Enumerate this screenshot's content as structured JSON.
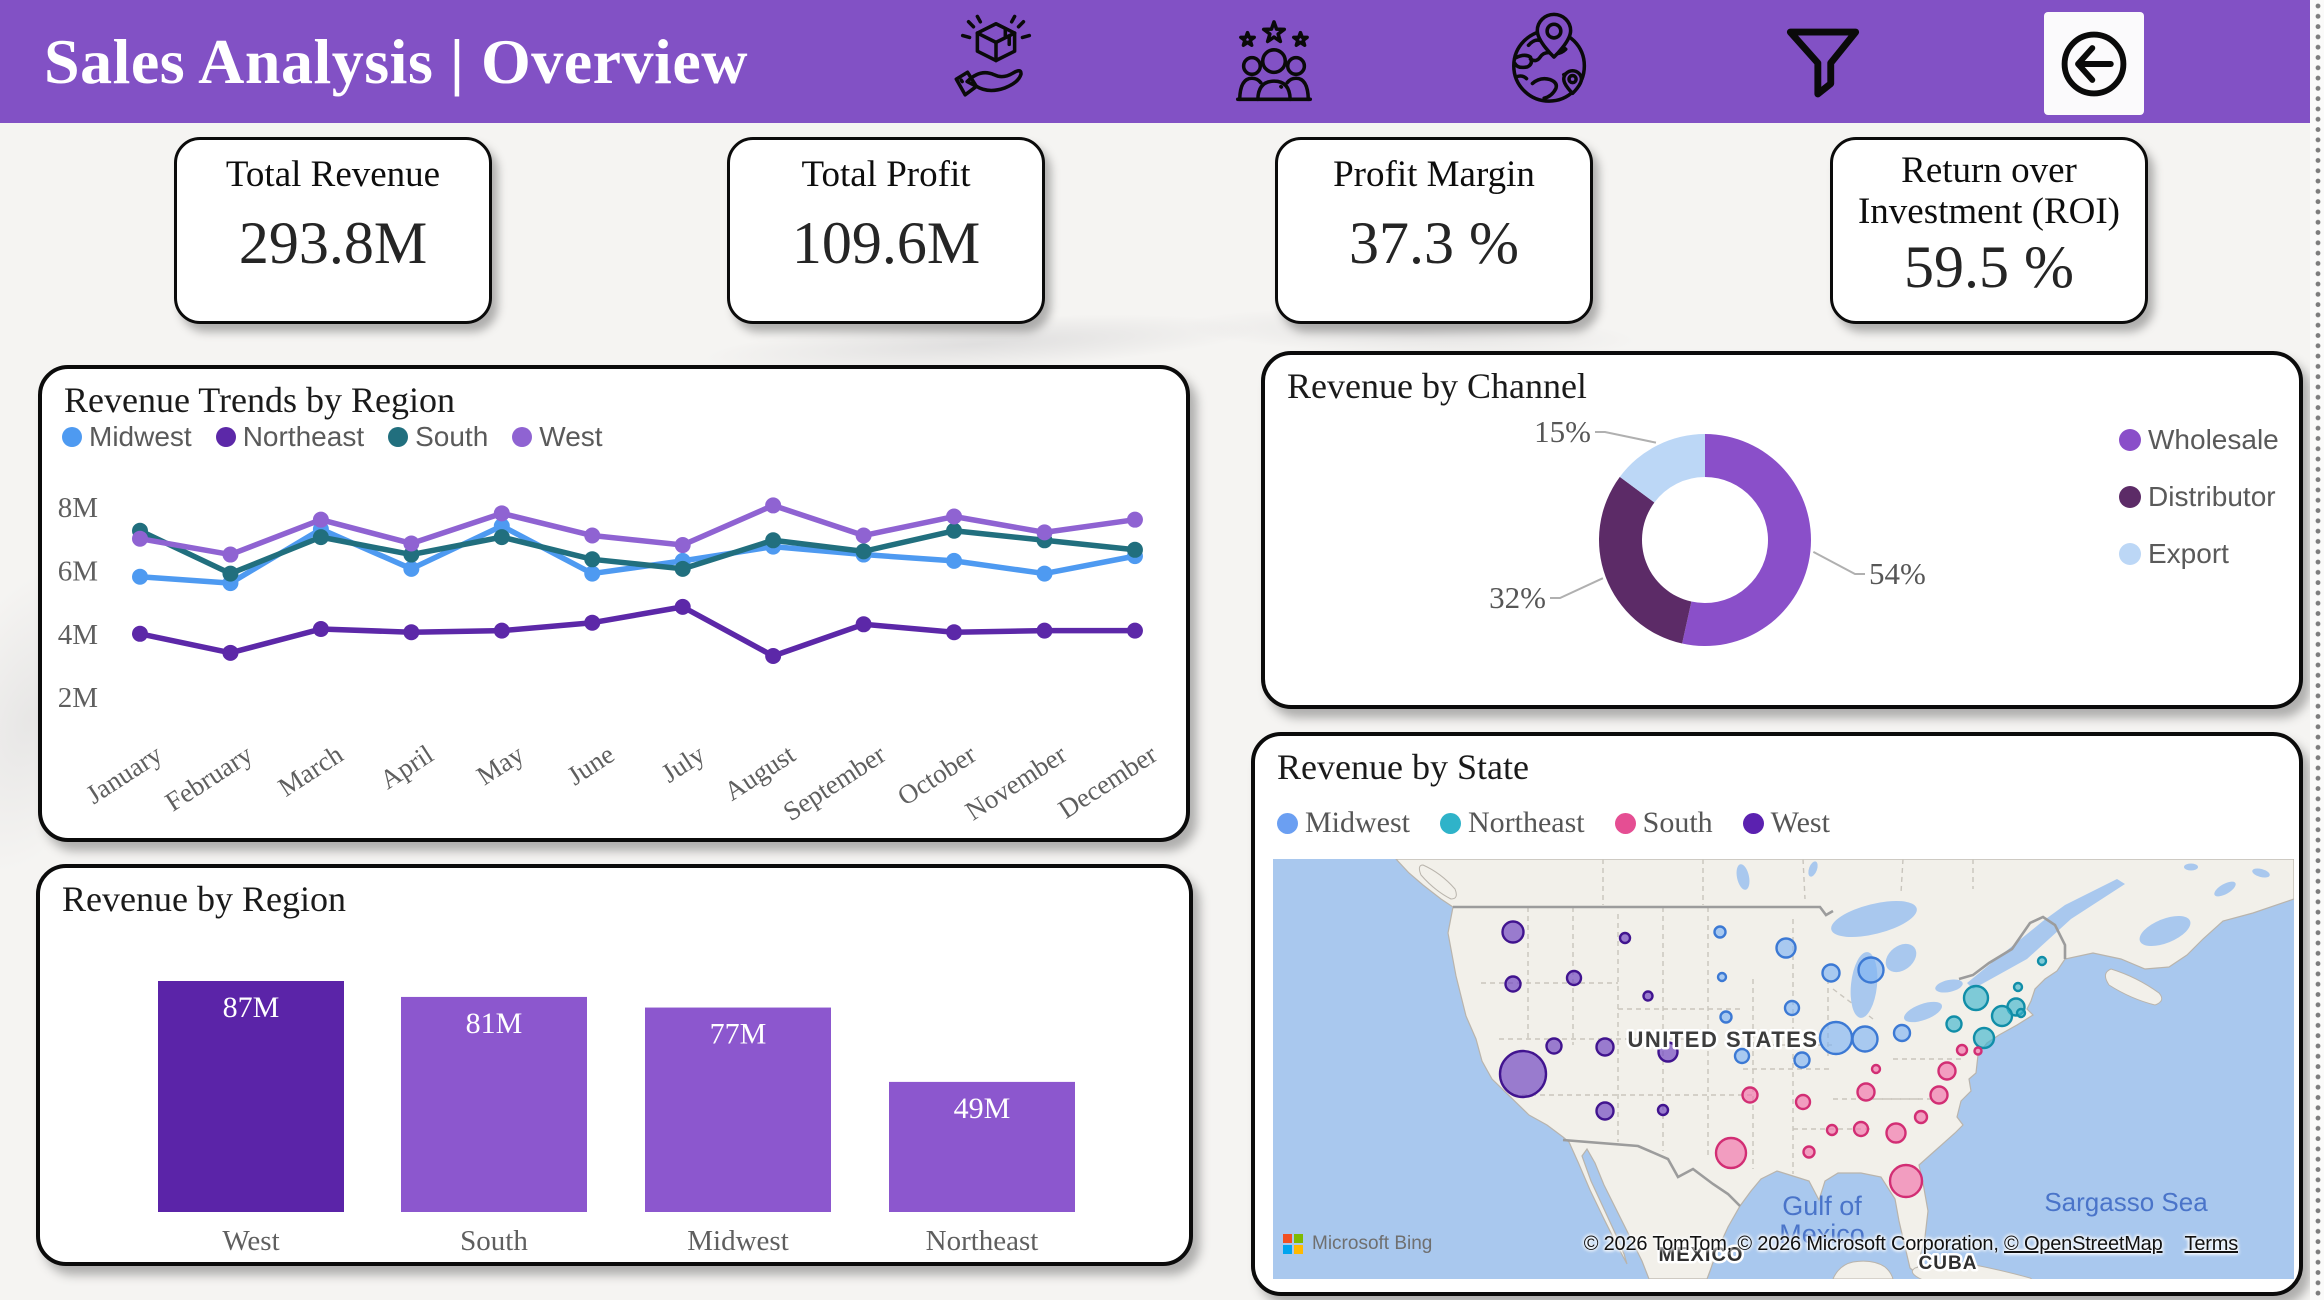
{
  "app": {
    "background": "#F5F4F2",
    "accent": "#8251C5"
  },
  "header": {
    "title": "Sales Analysis | Overview",
    "background": "#8251C5",
    "icons": [
      {
        "name": "product-handoff-icon"
      },
      {
        "name": "customer-rating-icon"
      },
      {
        "name": "global-locations-icon"
      },
      {
        "name": "filter-icon"
      },
      {
        "name": "back-arrow-icon"
      }
    ]
  },
  "kpis": [
    {
      "label": "Total Revenue",
      "value": "293.8M"
    },
    {
      "label": "Total Profit",
      "value": "109.6M"
    },
    {
      "label": "Profit Margin",
      "value": "37.3 %"
    },
    {
      "label": "Return over Investment (ROI)",
      "value": "59.5 %"
    }
  ],
  "chart_data": [
    {
      "type": "line",
      "title": "Revenue Trends by Region",
      "xlabel": "",
      "ylabel": "",
      "ylim": [
        2000000,
        8000000
      ],
      "y_tick_labels": [
        "2M",
        "4M",
        "6M",
        "8M"
      ],
      "categories": [
        "January",
        "February",
        "March",
        "April",
        "May",
        "June",
        "July",
        "August",
        "September",
        "October",
        "November",
        "December"
      ],
      "legend_position": "top-left",
      "grid": false,
      "unit": "millions",
      "series": [
        {
          "name": "Midwest",
          "color": "#4E9AF1",
          "values": [
            5.8,
            5.6,
            7.3,
            6.05,
            7.4,
            5.9,
            6.3,
            6.75,
            6.5,
            6.3,
            5.9,
            6.45
          ]
        },
        {
          "name": "Northeast",
          "color": "#5C28A8",
          "values": [
            4.0,
            3.4,
            4.15,
            4.05,
            4.1,
            4.35,
            4.85,
            3.3,
            4.3,
            4.05,
            4.1,
            4.1
          ]
        },
        {
          "name": "South",
          "color": "#216F7E",
          "values": [
            7.25,
            5.9,
            7.05,
            6.5,
            7.05,
            6.35,
            6.05,
            6.95,
            6.6,
            7.25,
            6.95,
            6.65
          ]
        },
        {
          "name": "West",
          "color": "#8F63D2",
          "values": [
            7.0,
            6.5,
            7.6,
            6.85,
            7.8,
            7.1,
            6.8,
            8.05,
            7.1,
            7.7,
            7.2,
            7.6
          ]
        }
      ]
    },
    {
      "type": "pie",
      "subtype": "donut",
      "title": "Revenue by Channel",
      "legend_position": "right",
      "slices": [
        {
          "name": "Wholesale",
          "pct_label": "54%",
          "value": 54,
          "color": "#8A4FC9"
        },
        {
          "name": "Distributor",
          "pct_label": "32%",
          "value": 32,
          "color": "#5C2B67"
        },
        {
          "name": "Export",
          "pct_label": "15%",
          "value": 15,
          "color": "#BCD7F6"
        }
      ]
    },
    {
      "type": "bar",
      "title": "Revenue by Region",
      "xlabel": "",
      "ylabel": "",
      "grid": false,
      "categories": [
        "West",
        "South",
        "Midwest",
        "Northeast"
      ],
      "values": [
        87,
        81,
        77,
        49
      ],
      "value_labels": [
        "87M",
        "81M",
        "77M",
        "49M"
      ],
      "bar_colors": [
        "#5B24A8",
        "#8C57CE",
        "#8C57CE",
        "#8C57CE"
      ],
      "unit": "millions"
    },
    {
      "type": "scatter",
      "subtype": "map-bubbles",
      "title": "Revenue by State",
      "legend_position": "top-left",
      "note": "bubble positions/radii read from map pixels (px inside 1021x420 map area)",
      "legend": [
        {
          "name": "Midwest",
          "color": "#6B9FF2"
        },
        {
          "name": "Northeast",
          "color": "#2FB3C9"
        },
        {
          "name": "South",
          "color": "#E54E93"
        },
        {
          "name": "West",
          "color": "#5B21B0"
        }
      ],
      "bubbles": [
        {
          "region": "West",
          "x": 240,
          "y": 73,
          "r": 10.5
        },
        {
          "region": "West",
          "x": 352,
          "y": 79,
          "r": 5
        },
        {
          "region": "West",
          "x": 240,
          "y": 125,
          "r": 7.5
        },
        {
          "region": "West",
          "x": 301,
          "y": 119,
          "r": 7
        },
        {
          "region": "West",
          "x": 375,
          "y": 137,
          "r": 4.5
        },
        {
          "region": "West",
          "x": 281,
          "y": 187,
          "r": 7.5
        },
        {
          "region": "West",
          "x": 332,
          "y": 188,
          "r": 8.5
        },
        {
          "region": "West",
          "x": 395,
          "y": 193,
          "r": 9.5
        },
        {
          "region": "West",
          "x": 250,
          "y": 215,
          "r": 23
        },
        {
          "region": "West",
          "x": 332,
          "y": 252,
          "r": 8.5
        },
        {
          "region": "West",
          "x": 390,
          "y": 251,
          "r": 5
        },
        {
          "region": "Midwest",
          "x": 447,
          "y": 73,
          "r": 5.5
        },
        {
          "region": "Midwest",
          "x": 513,
          "y": 89,
          "r": 9.5
        },
        {
          "region": "Midwest",
          "x": 449,
          "y": 118,
          "r": 4
        },
        {
          "region": "Midwest",
          "x": 558,
          "y": 114,
          "r": 8.5
        },
        {
          "region": "Midwest",
          "x": 598,
          "y": 111,
          "r": 12.5
        },
        {
          "region": "Midwest",
          "x": 519,
          "y": 149,
          "r": 7
        },
        {
          "region": "Midwest",
          "x": 453,
          "y": 158,
          "r": 5.5
        },
        {
          "region": "Midwest",
          "x": 563,
          "y": 179,
          "r": 16
        },
        {
          "region": "Midwest",
          "x": 592,
          "y": 180,
          "r": 12.5
        },
        {
          "region": "Midwest",
          "x": 629,
          "y": 174,
          "r": 8
        },
        {
          "region": "Midwest",
          "x": 469,
          "y": 197,
          "r": 7
        },
        {
          "region": "Midwest",
          "x": 529,
          "y": 201,
          "r": 7.5
        },
        {
          "region": "Northeast",
          "x": 703,
          "y": 139,
          "r": 12
        },
        {
          "region": "Northeast",
          "x": 745,
          "y": 128,
          "r": 4
        },
        {
          "region": "Northeast",
          "x": 743,
          "y": 148,
          "r": 8.5
        },
        {
          "region": "Northeast",
          "x": 729,
          "y": 157,
          "r": 10
        },
        {
          "region": "Northeast",
          "x": 748,
          "y": 154,
          "r": 4
        },
        {
          "region": "Northeast",
          "x": 681,
          "y": 165,
          "r": 7.5
        },
        {
          "region": "Northeast",
          "x": 711,
          "y": 179,
          "r": 10
        },
        {
          "region": "Northeast",
          "x": 769,
          "y": 102,
          "r": 4
        },
        {
          "region": "South",
          "x": 689,
          "y": 191,
          "r": 5
        },
        {
          "region": "South",
          "x": 705,
          "y": 192,
          "r": 3.5
        },
        {
          "region": "South",
          "x": 674,
          "y": 212,
          "r": 8.5
        },
        {
          "region": "South",
          "x": 603,
          "y": 210,
          "r": 4
        },
        {
          "region": "South",
          "x": 666,
          "y": 236,
          "r": 8.5
        },
        {
          "region": "South",
          "x": 593,
          "y": 233,
          "r": 8.5
        },
        {
          "region": "South",
          "x": 530,
          "y": 243,
          "r": 7
        },
        {
          "region": "South",
          "x": 477,
          "y": 236,
          "r": 7.5
        },
        {
          "region": "South",
          "x": 648,
          "y": 258,
          "r": 6
        },
        {
          "region": "South",
          "x": 623,
          "y": 274,
          "r": 9.5
        },
        {
          "region": "South",
          "x": 588,
          "y": 270,
          "r": 7
        },
        {
          "region": "South",
          "x": 559,
          "y": 271,
          "r": 5
        },
        {
          "region": "South",
          "x": 536,
          "y": 293,
          "r": 5.5
        },
        {
          "region": "South",
          "x": 458,
          "y": 294,
          "r": 15
        },
        {
          "region": "South",
          "x": 633,
          "y": 322,
          "r": 16
        }
      ],
      "map_labels": {
        "country": "UNITED STATES",
        "gulf_line1": "Gulf of",
        "gulf_line2": "Mexico",
        "sargasso": "Sargasso Sea",
        "mexico": "MEXICO",
        "cuba": "CUBA"
      },
      "attribution": {
        "bing": "Microsoft Bing",
        "copyright": "© 2026 TomTom, © 2026 Microsoft Corporation, ",
        "osm_link": "© OpenStreetMap",
        "terms_link": "Terms"
      }
    }
  ]
}
